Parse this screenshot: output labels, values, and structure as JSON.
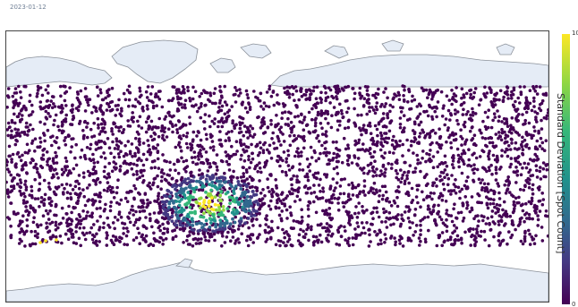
{
  "date": "2023-01-12",
  "colorbar": {
    "title": "Standard Deviation [Spot Count]",
    "max_label": "10",
    "min_label": "0",
    "colors": [
      "#440154",
      "#443983",
      "#31688e",
      "#21918c",
      "#35b779",
      "#90d743",
      "#fde725"
    ]
  },
  "map": {
    "land_color": "#e5ecf6",
    "coast_color": "#8a9099",
    "background": "#ffffff",
    "point_color_low": "#440154",
    "hotspot": {
      "lon": -45,
      "lat": -25,
      "value": 10
    }
  }
}
